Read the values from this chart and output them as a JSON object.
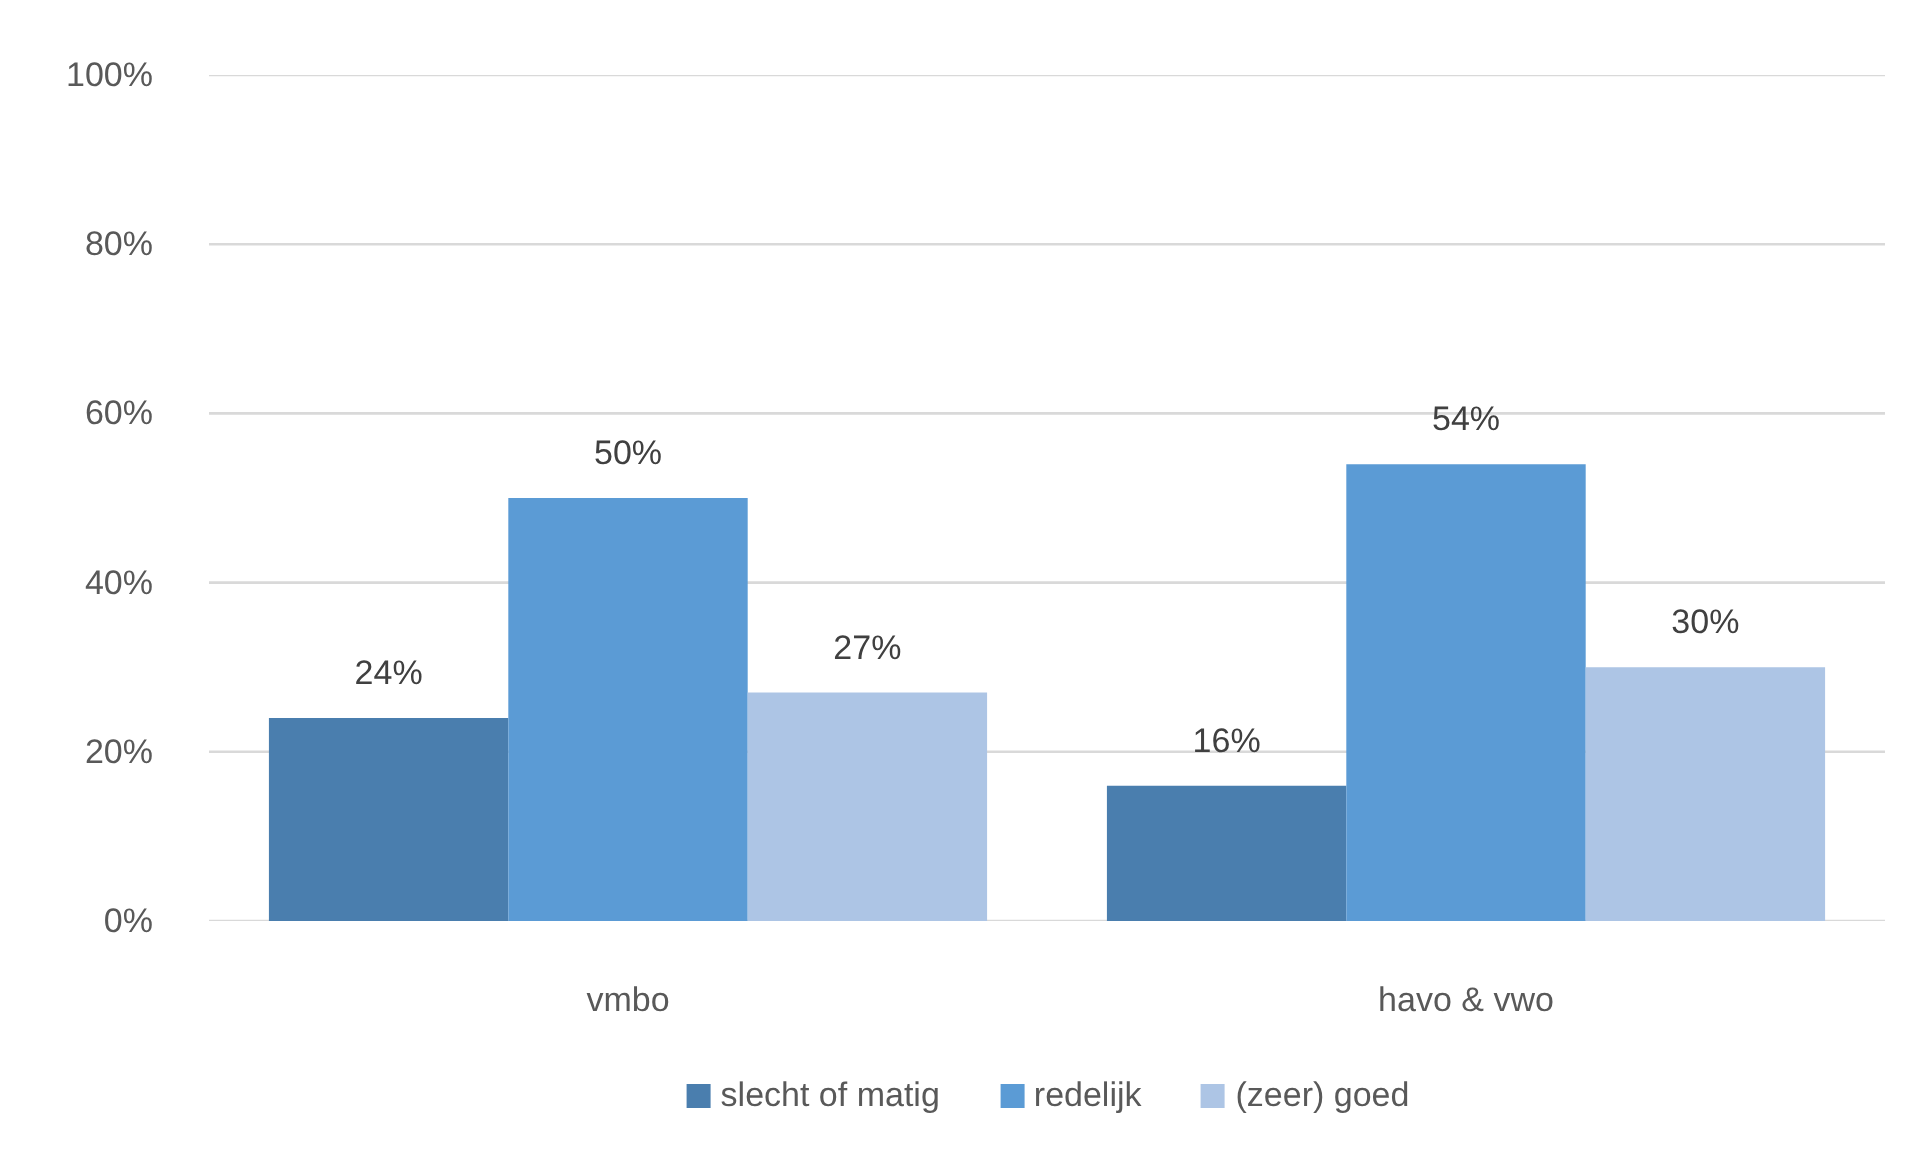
{
  "chart_data": {
    "type": "bar",
    "categories": [
      "vmbo",
      "havo & vwo"
    ],
    "series": [
      {
        "name": "slecht of matig",
        "color": "#4a7eae",
        "values": [
          24,
          16
        ],
        "value_labels": [
          "24%",
          "16%"
        ]
      },
      {
        "name": "redelijk",
        "color": "#5b9bd5",
        "values": [
          50,
          54
        ],
        "value_labels": [
          "50%",
          "54%"
        ]
      },
      {
        "name": "(zeer) goed",
        "color": "#adc5e5",
        "values": [
          27,
          30
        ],
        "value_labels": [
          "27%",
          "30%"
        ]
      }
    ],
    "ylim": [
      0,
      100
    ],
    "yticks": [
      {
        "value": 0,
        "label": "0%"
      },
      {
        "value": 20,
        "label": "20%"
      },
      {
        "value": 40,
        "label": "40%"
      },
      {
        "value": 60,
        "label": "60%"
      },
      {
        "value": 80,
        "label": "80%"
      },
      {
        "value": 100,
        "label": "100%"
      }
    ],
    "grid": "y",
    "legend": "bottom"
  }
}
